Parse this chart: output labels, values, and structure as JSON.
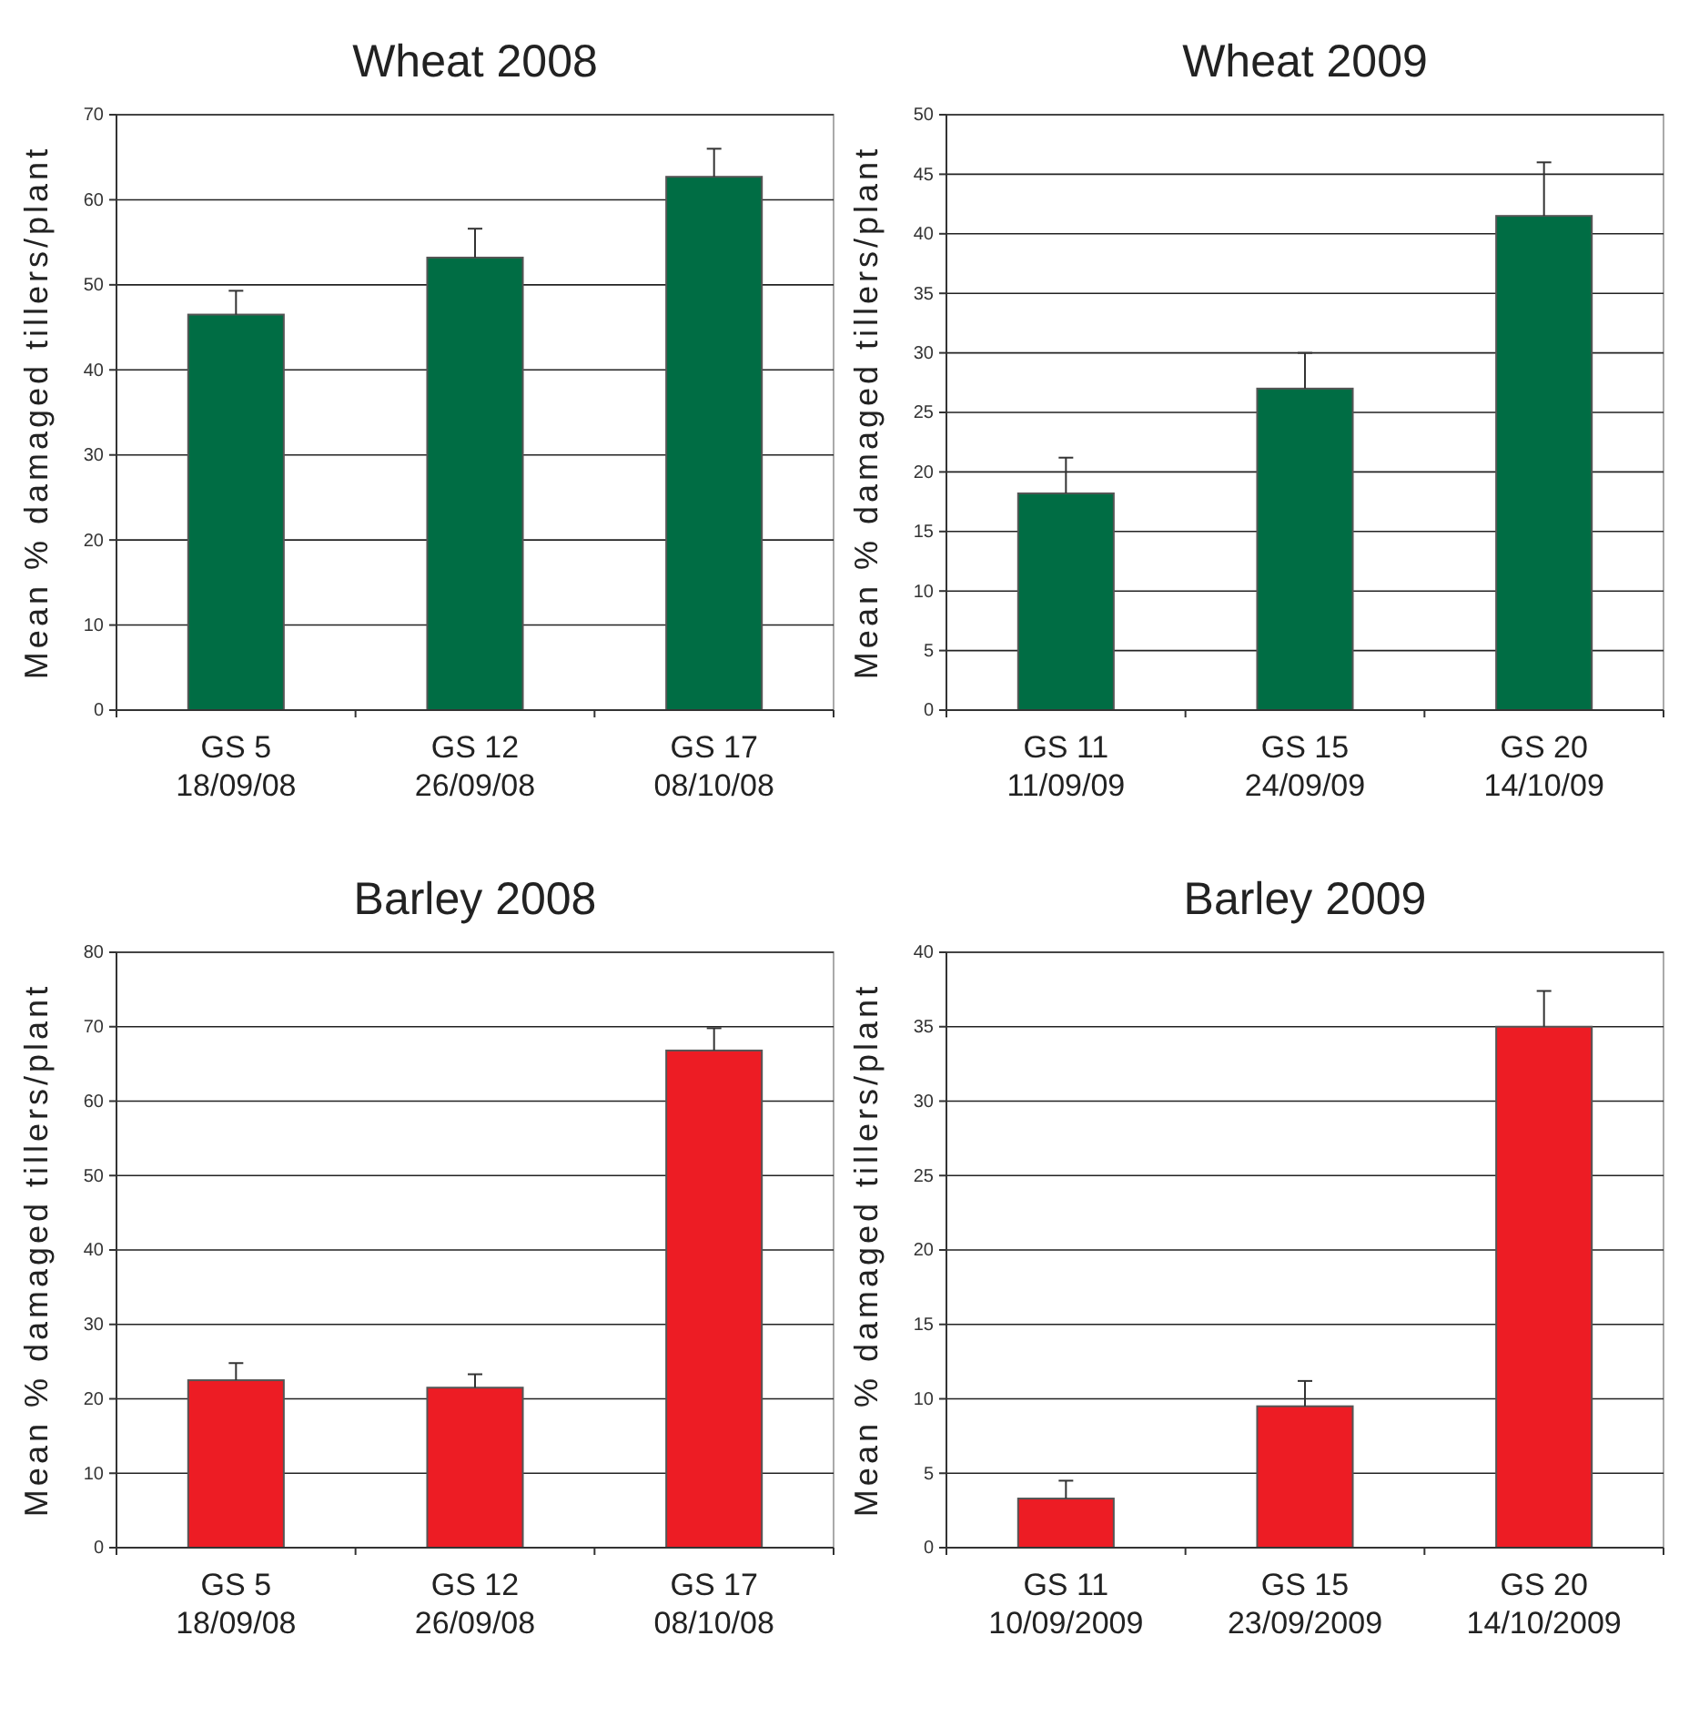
{
  "chart_data": [
    {
      "type": "bar",
      "title": "Wheat 2008",
      "ylabel": "Mean % damaged tillers/plant",
      "categories": [
        "GS 5\n18/09/08",
        "GS 12\n26/09/08",
        "GS 17\n08/10/08"
      ],
      "values": [
        46.5,
        53.2,
        62.7
      ],
      "errors": [
        [
          46.5,
          49.3
        ],
        [
          53.2,
          56.6
        ],
        [
          62.7,
          66
        ]
      ],
      "color": "#006d44",
      "ylim": [
        0,
        70
      ],
      "yticks": [
        0,
        10,
        20,
        30,
        40,
        50,
        60,
        70
      ],
      "grid": "y"
    },
    {
      "type": "bar",
      "title": "Wheat 2009",
      "ylabel": "Mean % damaged tillers/plant",
      "categories": [
        "GS 11\n11/09/09",
        "GS 15\n24/09/09",
        "GS 20\n14/10/09"
      ],
      "values": [
        18.2,
        27,
        41.5
      ],
      "errors": [
        [
          18.2,
          21.2
        ],
        [
          27,
          30
        ],
        [
          41.5,
          46
        ]
      ],
      "color": "#006d44",
      "ylim": [
        0,
        50
      ],
      "yticks": [
        0,
        5,
        10,
        15,
        20,
        25,
        30,
        35,
        40,
        45,
        50
      ],
      "grid": "y"
    },
    {
      "type": "bar",
      "title": "Barley 2008",
      "ylabel": "Mean % damaged tillers/plant",
      "categories": [
        "GS 5\n18/09/08",
        "GS 12\n26/09/08",
        "GS 17\n08/10/08"
      ],
      "values": [
        22.5,
        21.5,
        66.8
      ],
      "errors": [
        [
          22.5,
          24.8
        ],
        [
          21.5,
          23.3
        ],
        [
          66.8,
          69.8
        ]
      ],
      "color": "#ed1c24",
      "ylim": [
        0,
        80
      ],
      "yticks": [
        0,
        10,
        20,
        30,
        40,
        50,
        60,
        70,
        80
      ],
      "grid": "y"
    },
    {
      "type": "bar",
      "title": "Barley 2009",
      "ylabel": "Mean % damaged tillers/plant",
      "categories": [
        "GS 11\n10/09/2009",
        "GS 15\n23/09/2009",
        "GS 20\n14/10/2009"
      ],
      "values": [
        3.3,
        9.5,
        35
      ],
      "errors": [
        [
          3.3,
          4.5
        ],
        [
          9.5,
          11.2
        ],
        [
          35,
          37.4
        ]
      ],
      "color": "#ed1c24",
      "ylim": [
        0,
        40
      ],
      "yticks": [
        0,
        5,
        10,
        15,
        20,
        25,
        30,
        35,
        40
      ],
      "grid": "y"
    }
  ]
}
